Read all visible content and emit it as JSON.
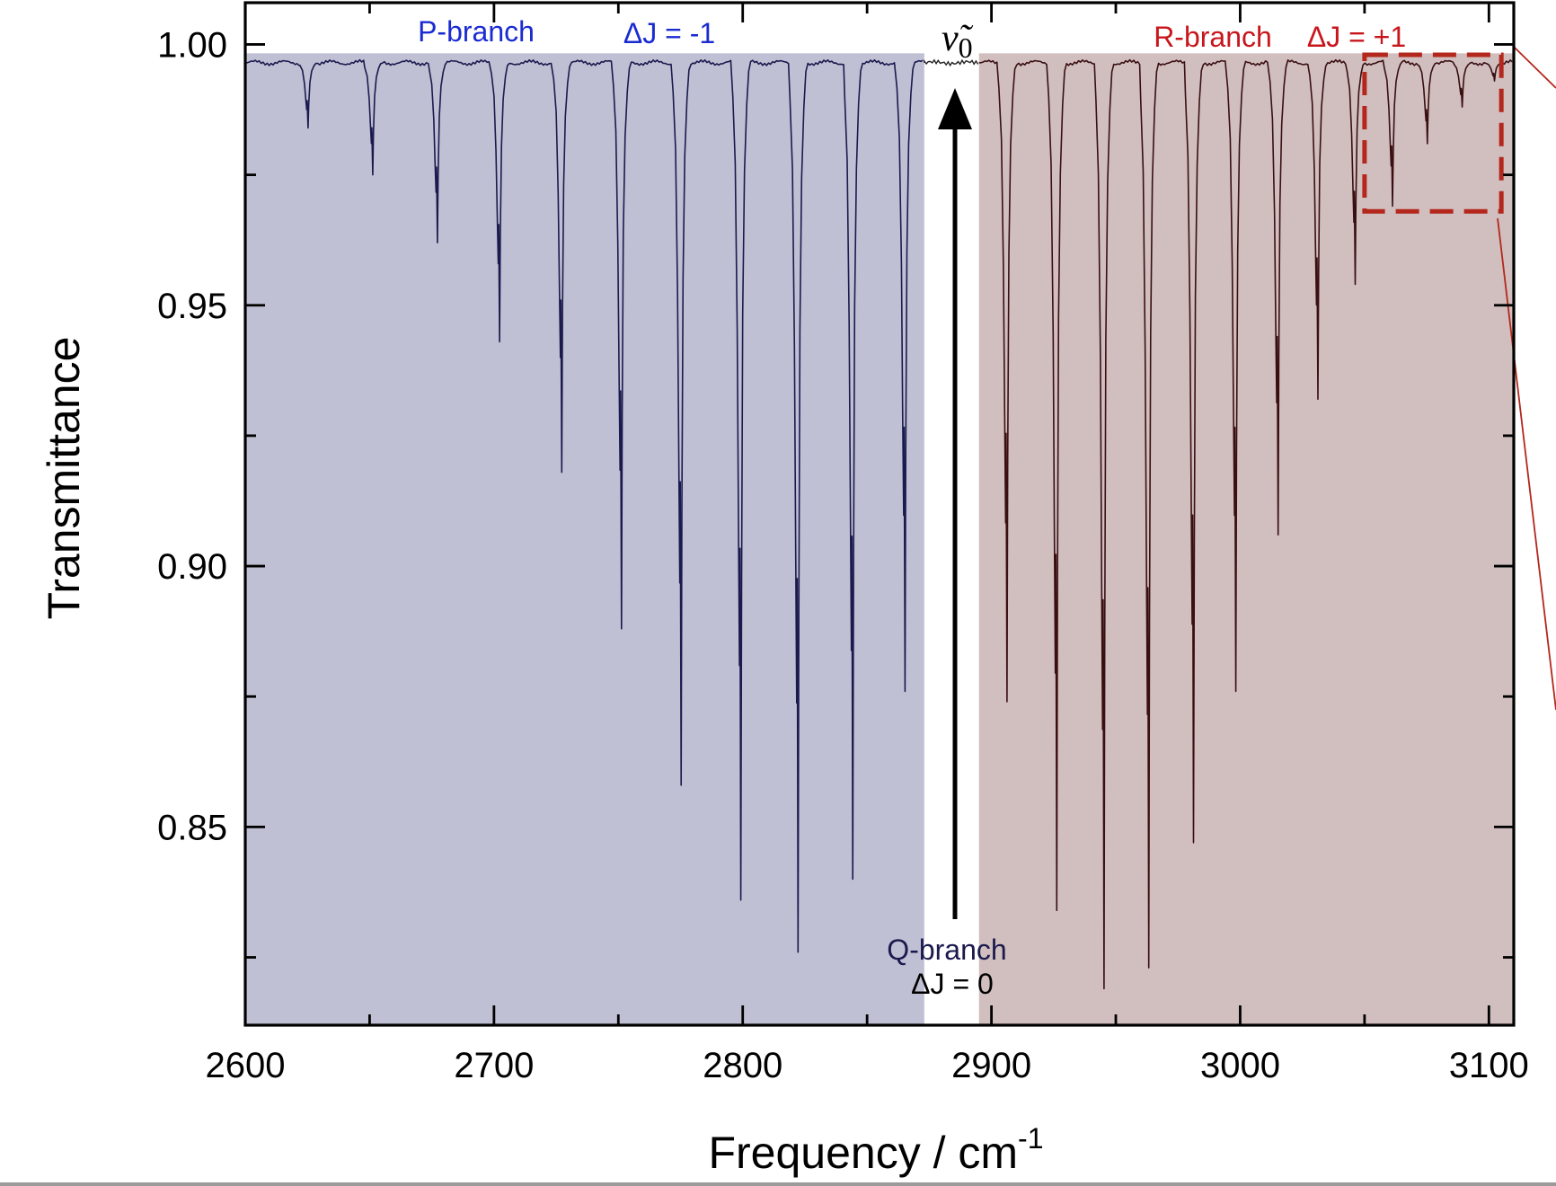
{
  "chart_data": {
    "type": "line",
    "title": "",
    "xlabel": "Frequency / cm",
    "xlabel_sup": "-1",
    "ylabel": "Transmittance",
    "xlim": [
      2600,
      3110
    ],
    "ylim": [
      0.812,
      1.008
    ],
    "x_ticks": [
      2600,
      2700,
      2800,
      2900,
      3000,
      3100
    ],
    "x_tick_labels": [
      "2600",
      "2700",
      "2800",
      "2900",
      "3000",
      "3100"
    ],
    "x_minor_ticks": [
      2650,
      2750,
      2850,
      2950,
      3050
    ],
    "y_ticks": [
      0.85,
      0.9,
      0.95,
      1.0
    ],
    "y_tick_labels": [
      "0.85",
      "0.90",
      "0.95",
      "1.00"
    ],
    "y_minor_ticks": [
      0.825,
      0.875,
      0.925,
      0.975
    ],
    "grid": false,
    "baseline": 0.9965,
    "series": [
      {
        "name": "P-branch",
        "color": "#1a1a4e",
        "shade": "#c0c0d4",
        "shade_range": [
          2600,
          2873
        ],
        "lines": [
          [
            2625,
            0.984
          ],
          [
            2651,
            0.975
          ],
          [
            2677,
            0.962
          ],
          [
            2702,
            0.943
          ],
          [
            2727,
            0.918
          ],
          [
            2751,
            0.888
          ],
          [
            2775,
            0.858
          ],
          [
            2799,
            0.836
          ],
          [
            2822,
            0.826
          ],
          [
            2844,
            0.84
          ],
          [
            2865,
            0.876
          ]
        ]
      },
      {
        "name": "R-branch",
        "color": "#3a0f12",
        "shade": "#d1bfbf",
        "shade_range": [
          2895,
          3110
        ],
        "lines": [
          [
            2906,
            0.874
          ],
          [
            2926,
            0.834
          ],
          [
            2945,
            0.819
          ],
          [
            2963,
            0.823
          ],
          [
            2981,
            0.847
          ],
          [
            2998,
            0.876
          ],
          [
            3015,
            0.906
          ],
          [
            3031,
            0.932
          ],
          [
            3046,
            0.954
          ],
          [
            3061,
            0.969
          ],
          [
            3075,
            0.981
          ],
          [
            3089,
            0.988
          ],
          [
            3102,
            0.993
          ]
        ]
      }
    ],
    "annotations": {
      "p_branch": "P-branch",
      "p_delta": "ΔJ = -1",
      "r_branch": "R-branch",
      "r_delta": "ΔJ = +1",
      "q_branch": "Q-branch",
      "q_delta": "ΔJ = 0",
      "nu_symbol": "ν̃",
      "nu_subscript": "0"
    },
    "zoom_box": {
      "x": [
        3050,
        3105
      ],
      "y": [
        0.968,
        0.998
      ],
      "color": "#b3271c"
    },
    "colors": {
      "p_text": "#1a2bd1",
      "r_text": "#c8161d",
      "q_text": "#1a1a4e"
    }
  }
}
